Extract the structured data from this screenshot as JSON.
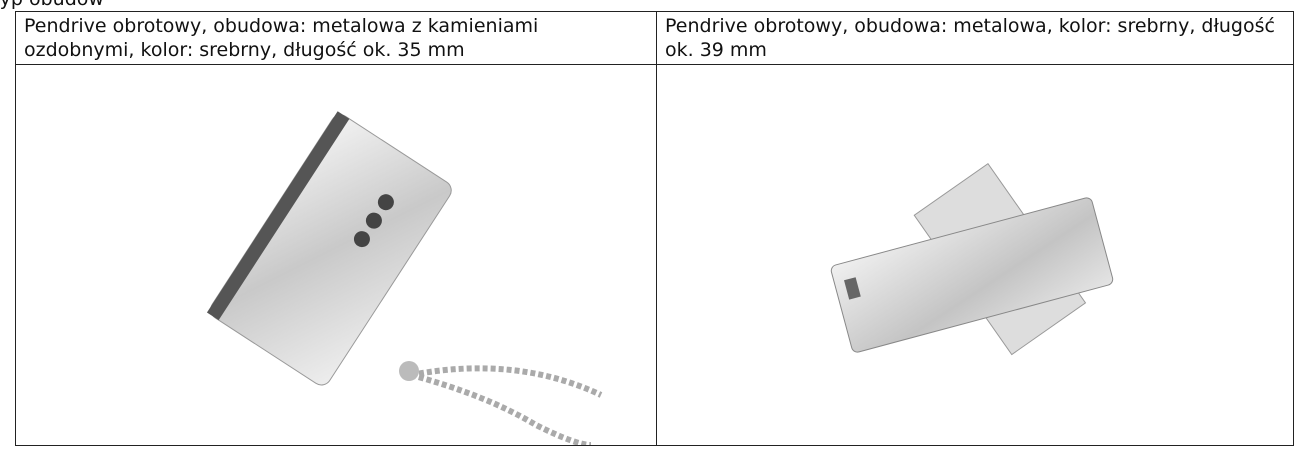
{
  "header": {
    "text": "Typ obudów"
  },
  "table": {
    "rows": [
      [
        "Pendrive obrotowy, obudowa: metalowa z kamieniami ozdobnymi, kolor: srebrny, długość ok. 35 mm",
        "Pendrive obrotowy, obudowa: metalowa, kolor: srebrny, długość ok. 39 mm"
      ]
    ]
  }
}
